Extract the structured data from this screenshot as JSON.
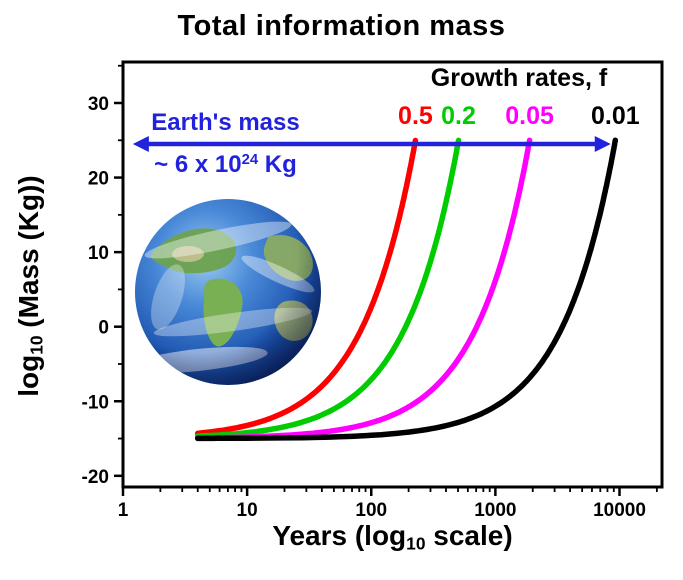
{
  "title": "Total information mass",
  "legend": {
    "title": "Growth rates, f"
  },
  "earth_annotation": {
    "line1": "Earth's mass",
    "value_prefix": "~ 6 x 10",
    "value_exponent": "24",
    "value_suffix": " Kg",
    "color": "#2222dd"
  },
  "x_axis": {
    "label_prefix": "Years (log",
    "label_sub": "10",
    "label_suffix": " scale)"
  },
  "y_axis": {
    "label_prefix": "log",
    "label_sub": "10",
    "label_suffix": " (Mass (Kg))"
  },
  "chart_data": {
    "type": "line",
    "title": "Total information mass",
    "xlabel": "Years (log10 scale)",
    "ylabel": "log10 (Mass (Kg))",
    "x_scale": "log10",
    "xlim": [
      1,
      22000
    ],
    "ylim": [
      -21.5,
      35.5
    ],
    "x_ticks": [
      1,
      10,
      100,
      1000,
      10000
    ],
    "y_ticks": [
      -20,
      -10,
      0,
      10,
      20,
      30
    ],
    "grid": false,
    "legend_title": "Growth rates, f",
    "legend_position": "top-right",
    "series": [
      {
        "name": "0.5",
        "f": 0.5,
        "color": "#ff0000",
        "points": [
          [
            4,
            -14.3
          ],
          [
            10,
            -13.24
          ],
          [
            20,
            -11.48
          ],
          [
            30,
            -9.72
          ],
          [
            45,
            -7.08
          ],
          [
            60,
            -4.43
          ],
          [
            80,
            -0.91
          ],
          [
            100,
            2.61
          ],
          [
            125,
            7.01
          ],
          [
            150,
            11.41
          ],
          [
            175,
            15.82
          ],
          [
            200,
            20.22
          ],
          [
            227,
            24.97
          ]
        ]
      },
      {
        "name": "0.2",
        "f": 0.2,
        "color": "#00cc00",
        "points": [
          [
            4,
            -14.68
          ],
          [
            10,
            -14.21
          ],
          [
            25,
            -13.02
          ],
          [
            50,
            -11.04
          ],
          [
            80,
            -8.67
          ],
          [
            120,
            -5.5
          ],
          [
            160,
            -2.33
          ],
          [
            200,
            0.84
          ],
          [
            250,
            4.8
          ],
          [
            300,
            8.75
          ],
          [
            360,
            13.5
          ],
          [
            420,
            18.26
          ],
          [
            470,
            22.22
          ],
          [
            505,
            24.99
          ]
        ]
      },
      {
        "name": "0.05",
        "f": 0.05,
        "color": "#ff00ff",
        "points": [
          [
            4,
            -14.92
          ],
          [
            10,
            -14.79
          ],
          [
            40,
            -14.15
          ],
          [
            100,
            -12.88
          ],
          [
            200,
            -10.76
          ],
          [
            350,
            -7.58
          ],
          [
            500,
            -4.41
          ],
          [
            650,
            -1.23
          ],
          [
            800,
            1.95
          ],
          [
            1000,
            6.19
          ],
          [
            1200,
            10.43
          ],
          [
            1450,
            15.72
          ],
          [
            1700,
            21.02
          ],
          [
            1888,
            25.0
          ]
        ]
      },
      {
        "name": "0.01",
        "f": 0.01,
        "color": "#000000",
        "points": [
          [
            4,
            -14.98
          ],
          [
            10,
            -14.96
          ],
          [
            100,
            -14.57
          ],
          [
            300,
            -13.7
          ],
          [
            600,
            -12.41
          ],
          [
            1000,
            -10.68
          ],
          [
            1600,
            -8.09
          ],
          [
            2200,
            -5.49
          ],
          [
            3000,
            -2.04
          ],
          [
            3800,
            1.42
          ],
          [
            4600,
            4.88
          ],
          [
            5400,
            8.34
          ],
          [
            6200,
            11.79
          ],
          [
            7000,
            15.25
          ],
          [
            7800,
            18.71
          ],
          [
            8600,
            22.16
          ],
          [
            9256,
            25.0
          ]
        ]
      }
    ],
    "annotations": [
      {
        "type": "double-arrow",
        "label": "Earth's mass ~ 6 x 10^24 Kg",
        "y": 24.5,
        "x_from": 1.2,
        "x_to": 8500,
        "color": "#2222dd"
      }
    ]
  }
}
